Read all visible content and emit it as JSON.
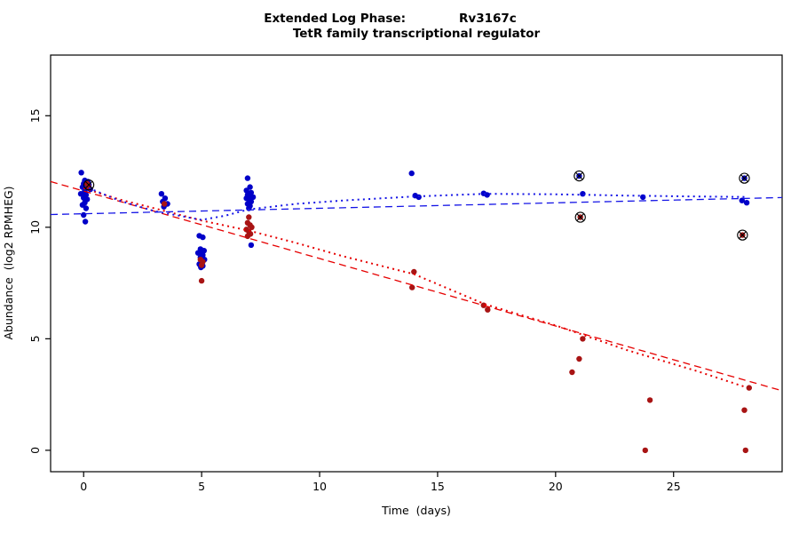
{
  "chart_data": {
    "type": "scatter",
    "title_left": "Extended Log Phase:",
    "title_gene": "Rv3167c",
    "subtitle": "TetR family transcriptional regulator",
    "xlabel": "Time  (days)",
    "ylabel": "Abundance  (log2 RPMHEG)",
    "xlim": [
      -1.4,
      29.6
    ],
    "ylim": [
      -0.96,
      17.72
    ],
    "x_ticks": [
      0,
      5,
      10,
      15,
      20,
      25
    ],
    "y_ticks": [
      0,
      5,
      10,
      15
    ],
    "grid": false,
    "legend": "none",
    "point_radius": 3.2,
    "colors": {
      "blue_points": "#0000C8",
      "red_points": "#A81414",
      "blue_line": "#1414E6",
      "red_line": "#E60000",
      "flag_marker": "#000000",
      "axis": "#000000"
    },
    "series": [
      {
        "name": "blue",
        "color": "#0000C8",
        "points": [
          [
            -0.1,
            12.45
          ],
          [
            0.05,
            12.1
          ],
          [
            0.18,
            12.05
          ],
          [
            0,
            11.95
          ],
          [
            0.22,
            11.9
          ],
          [
            -0.05,
            11.8
          ],
          [
            0.1,
            11.75
          ],
          [
            0.28,
            11.7
          ],
          [
            0.05,
            11.62
          ],
          [
            -0.12,
            11.5
          ],
          [
            0.1,
            11.45
          ],
          [
            0,
            11.32
          ],
          [
            0.15,
            11.25
          ],
          [
            0.05,
            11.1
          ],
          [
            -0.05,
            11.0
          ],
          [
            0.1,
            10.85
          ],
          [
            0,
            10.55
          ],
          [
            0.07,
            10.25
          ],
          [
            3.3,
            11.5
          ],
          [
            3.45,
            11.3
          ],
          [
            3.35,
            11.15
          ],
          [
            3.55,
            11.05
          ],
          [
            3.4,
            10.92
          ],
          [
            4.9,
            9.62
          ],
          [
            5.05,
            9.55
          ],
          [
            4.95,
            9.02
          ],
          [
            5.1,
            8.95
          ],
          [
            5,
            8.9
          ],
          [
            4.85,
            8.85
          ],
          [
            5.05,
            8.75
          ],
          [
            4.95,
            8.65
          ],
          [
            5.12,
            8.55
          ],
          [
            5,
            8.45
          ],
          [
            4.9,
            8.35
          ],
          [
            5.05,
            8.27
          ],
          [
            4.97,
            8.2
          ],
          [
            6.95,
            12.2
          ],
          [
            7.05,
            11.8
          ],
          [
            6.9,
            11.65
          ],
          [
            7.1,
            11.55
          ],
          [
            7,
            11.5
          ],
          [
            6.95,
            11.45
          ],
          [
            7.08,
            11.4
          ],
          [
            7.18,
            11.35
          ],
          [
            6.9,
            11.3
          ],
          [
            7,
            11.25
          ],
          [
            7.1,
            11.15
          ],
          [
            6.95,
            11.05
          ],
          [
            7.05,
            10.95
          ],
          [
            7,
            10.85
          ],
          [
            7.1,
            9.2
          ],
          [
            13.9,
            12.42
          ],
          [
            14.05,
            11.42
          ],
          [
            14.2,
            11.35
          ],
          [
            16.95,
            11.52
          ],
          [
            17.1,
            11.45
          ],
          [
            21,
            12.3
          ],
          [
            21.15,
            11.5
          ],
          [
            23.7,
            11.35
          ],
          [
            28,
            12.2
          ],
          [
            27.9,
            11.2
          ],
          [
            28.1,
            11.1
          ]
        ]
      },
      {
        "name": "red",
        "color": "#A81414",
        "points": [
          [
            0.15,
            11.95
          ],
          [
            0.2,
            11.83
          ],
          [
            3.42,
            11.05
          ],
          [
            4.95,
            8.55
          ],
          [
            5.05,
            8.45
          ],
          [
            5,
            8.3
          ],
          [
            5,
            7.6
          ],
          [
            7,
            10.45
          ],
          [
            6.95,
            10.2
          ],
          [
            7.05,
            10.1
          ],
          [
            7.12,
            10.0
          ],
          [
            6.9,
            9.9
          ],
          [
            7,
            9.8
          ],
          [
            7.07,
            9.7
          ],
          [
            6.95,
            9.6
          ],
          [
            14,
            8.0
          ],
          [
            13.92,
            7.3
          ],
          [
            16.95,
            6.5
          ],
          [
            17.12,
            6.3
          ],
          [
            21.05,
            10.45
          ],
          [
            21.15,
            5.0
          ],
          [
            21,
            4.1
          ],
          [
            20.7,
            3.5
          ],
          [
            24,
            2.25
          ],
          [
            23.8,
            0.0
          ],
          [
            27.92,
            9.65
          ],
          [
            28.2,
            2.8
          ],
          [
            28,
            1.8
          ],
          [
            28.05,
            0.0
          ]
        ]
      }
    ],
    "flagged_points": [
      [
        0.22,
        11.9
      ],
      [
        21,
        12.3
      ],
      [
        21.05,
        10.45
      ],
      [
        28,
        12.2
      ],
      [
        27.92,
        9.65
      ]
    ],
    "trend_lines": [
      {
        "name": "red-linear-fit",
        "color": "#E60000",
        "dash": "dashed",
        "width": 1.3,
        "points": [
          [
            -1.4,
            12.05
          ],
          [
            29.6,
            2.67
          ]
        ]
      },
      {
        "name": "red-loess-fit",
        "color": "#E60000",
        "dash": "dotted",
        "width": 2,
        "points": [
          [
            0,
            11.75
          ],
          [
            1.5,
            11.25
          ],
          [
            3,
            10.85
          ],
          [
            5,
            10.3
          ],
          [
            7,
            9.85
          ],
          [
            9,
            9.3
          ],
          [
            11,
            8.7
          ],
          [
            14,
            7.9
          ],
          [
            17,
            6.55
          ],
          [
            20,
            5.6
          ],
          [
            23,
            4.5
          ],
          [
            26,
            3.55
          ],
          [
            28,
            2.85
          ]
        ]
      },
      {
        "name": "blue-linear-fit",
        "color": "#1414E6",
        "dash": "dashed",
        "width": 1.3,
        "points": [
          [
            -1.4,
            10.57
          ],
          [
            29.6,
            11.33
          ]
        ]
      },
      {
        "name": "blue-loess-fit",
        "color": "#1414E6",
        "dash": "dotted",
        "width": 2,
        "points": [
          [
            0,
            11.85
          ],
          [
            1.5,
            11.2
          ],
          [
            3,
            10.72
          ],
          [
            5,
            10.33
          ],
          [
            6,
            10.52
          ],
          [
            7,
            10.8
          ],
          [
            9,
            11.05
          ],
          [
            11,
            11.2
          ],
          [
            14,
            11.38
          ],
          [
            17,
            11.5
          ],
          [
            20,
            11.48
          ],
          [
            23,
            11.42
          ],
          [
            26,
            11.38
          ],
          [
            28,
            11.36
          ]
        ]
      }
    ]
  }
}
